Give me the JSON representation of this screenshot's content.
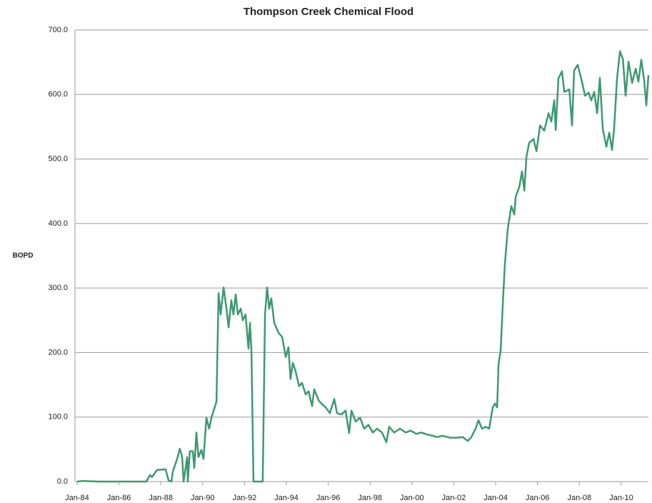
{
  "chart_data": {
    "type": "line",
    "title": "Thompson Creek Chemical Flood",
    "y_label": "BOPD",
    "x": [
      1984,
      1984.3,
      1985,
      1986,
      1987,
      1987.31,
      1987.48,
      1987.58,
      1987.82,
      1988.23,
      1988.37,
      1988.51,
      1988.57,
      1988.78,
      1988.91,
      1989.02,
      1989.09,
      1989.26,
      1989.29,
      1989.39,
      1989.53,
      1989.6,
      1989.7,
      1989.8,
      1989.94,
      1990.04,
      1990.18,
      1990.31,
      1990.42,
      1990.66,
      1990.76,
      1990.86,
      1991,
      1991.13,
      1991.24,
      1991.37,
      1991.47,
      1991.58,
      1991.68,
      1991.82,
      1991.92,
      1992.05,
      1992.19,
      1992.26,
      1992.33,
      1992.43,
      1992.87,
      1992.98,
      1993.08,
      1993.18,
      1993.28,
      1993.42,
      1993.62,
      1993.8,
      1993.97,
      1994.1,
      1994.2,
      1994.31,
      1994.44,
      1994.61,
      1994.75,
      1994.92,
      1995.06,
      1995.23,
      1995.33,
      1995.54,
      1995.67,
      1995.88,
      1996.08,
      1996.29,
      1996.42,
      1996.63,
      1996.83,
      1997,
      1997.11,
      1997.31,
      1997.52,
      1997.72,
      1997.92,
      1998.13,
      1998.33,
      1998.57,
      1998.78,
      1998.91,
      1999.15,
      1999.43,
      1999.7,
      1999.94,
      2000.21,
      2000.45,
      2000.72,
      2000.99,
      2001.2,
      2001.47,
      2001.82,
      2002.16,
      2002.43,
      2002.67,
      2002.84,
      2003.04,
      2003.18,
      2003.35,
      2003.52,
      2003.69,
      2003.86,
      2003.97,
      2004.07,
      2004.14,
      2004.24,
      2004.35,
      2004.44,
      2004.58,
      2004.75,
      2004.89,
      2004.96,
      2005.13,
      2005.26,
      2005.37,
      2005.47,
      2005.6,
      2005.81,
      2005.95,
      2006.12,
      2006.32,
      2006.53,
      2006.66,
      2006.8,
      2006.87,
      2007,
      2007.17,
      2007.28,
      2007.52,
      2007.65,
      2007.75,
      2007.92,
      2008.13,
      2008.27,
      2008.44,
      2008.57,
      2008.71,
      2008.85,
      2008.98,
      2009.12,
      2009.29,
      2009.43,
      2009.56,
      2009.66,
      2009.8,
      2009.94,
      2010.08,
      2010.21,
      2010.35,
      2010.52,
      2010.69,
      2010.82,
      2010.96,
      2011.1,
      2011.2,
      2011.3
    ],
    "series": [
      {
        "name": "BOPD",
        "color": "#3d9970",
        "values": [
          0,
          1,
          0,
          0,
          0,
          0,
          10,
          7,
          18,
          19,
          2,
          0,
          15,
          35,
          51,
          38,
          0,
          38,
          0,
          47,
          47,
          21,
          76,
          38,
          49,
          35,
          99,
          82,
          99,
          124,
          292,
          259,
          301,
          270,
          239,
          281,
          259,
          290,
          259,
          268,
          250,
          259,
          206,
          246,
          204,
          0,
          0,
          259,
          301,
          268,
          284,
          246,
          231,
          224,
          193,
          208,
          159,
          184,
          171,
          148,
          153,
          135,
          140,
          117,
          143,
          126,
          121,
          115,
          106,
          128,
          106,
          104,
          110,
          75,
          110,
          93,
          99,
          82,
          88,
          76,
          82,
          76,
          61,
          85,
          76,
          82,
          76,
          79,
          74,
          76,
          73,
          71,
          69,
          71,
          68,
          68,
          69,
          63,
          69,
          82,
          95,
          82,
          85,
          82,
          115,
          121,
          115,
          182,
          204,
          281,
          337,
          392,
          427,
          414,
          442,
          457,
          481,
          451,
          503,
          525,
          531,
          512,
          552,
          544,
          571,
          558,
          591,
          545,
          625,
          636,
          604,
          608,
          552,
          637,
          646,
          619,
          598,
          603,
          591,
          604,
          571,
          626,
          546,
          519,
          541,
          514,
          547,
          625,
          667,
          655,
          598,
          651,
          618,
          640,
          620,
          654,
          621,
          583,
          630
        ]
      }
    ],
    "xlim": [
      1983.9,
      2011.3
    ],
    "xticks": [
      {
        "value": 1984,
        "label": "Jan-84"
      },
      {
        "value": 1986,
        "label": "Jan-86"
      },
      {
        "value": 1988,
        "label": "Jan-88"
      },
      {
        "value": 1990,
        "label": "Jan-90"
      },
      {
        "value": 1992,
        "label": "Jan-92"
      },
      {
        "value": 1994,
        "label": "Jan-94"
      },
      {
        "value": 1996,
        "label": "Jan-96"
      },
      {
        "value": 1998,
        "label": "Jan-98"
      },
      {
        "value": 2000,
        "label": "Jan-00"
      },
      {
        "value": 2002,
        "label": "Jan-02"
      },
      {
        "value": 2004,
        "label": "Jan-04"
      },
      {
        "value": 2006,
        "label": "Jan-06"
      },
      {
        "value": 2008,
        "label": "Jan-08"
      },
      {
        "value": 2010,
        "label": "Jan-10"
      }
    ],
    "ylim": [
      0,
      700
    ],
    "yticks": [
      {
        "value": 0,
        "label": "0.0"
      },
      {
        "value": 100,
        "label": "100.0"
      },
      {
        "value": 200,
        "label": "200.0"
      },
      {
        "value": 300,
        "label": "300.0"
      },
      {
        "value": 400,
        "label": "400.0"
      },
      {
        "value": 500,
        "label": "500.0"
      },
      {
        "value": 600,
        "label": "600.0"
      },
      {
        "value": 700,
        "label": "700.0"
      }
    ],
    "grid": true
  }
}
